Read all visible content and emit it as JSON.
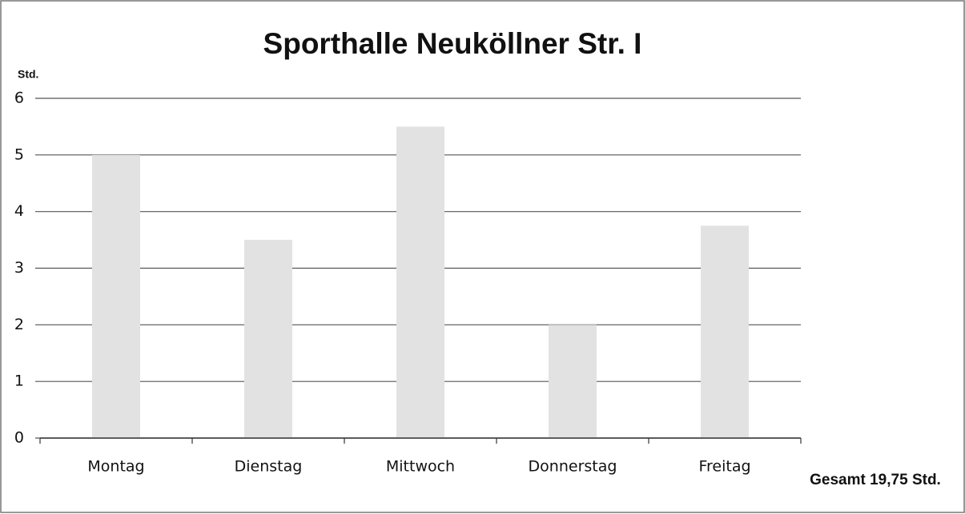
{
  "chart_data": {
    "type": "bar",
    "title": "Sporthalle Neuköllner Str. I",
    "y_label": "Std.",
    "annotation": "Gesamt 19,75 Std.",
    "categories": [
      "Montag",
      "Dienstag",
      "Mittwoch",
      "Donnerstag",
      "Freitag"
    ],
    "values": [
      5,
      3.5,
      5.5,
      2,
      3.75
    ],
    "color": "#e2e2e2",
    "ylim": [
      0,
      6
    ],
    "yticks": [
      0,
      1,
      2,
      3,
      4,
      5,
      6
    ],
    "grid": true
  }
}
